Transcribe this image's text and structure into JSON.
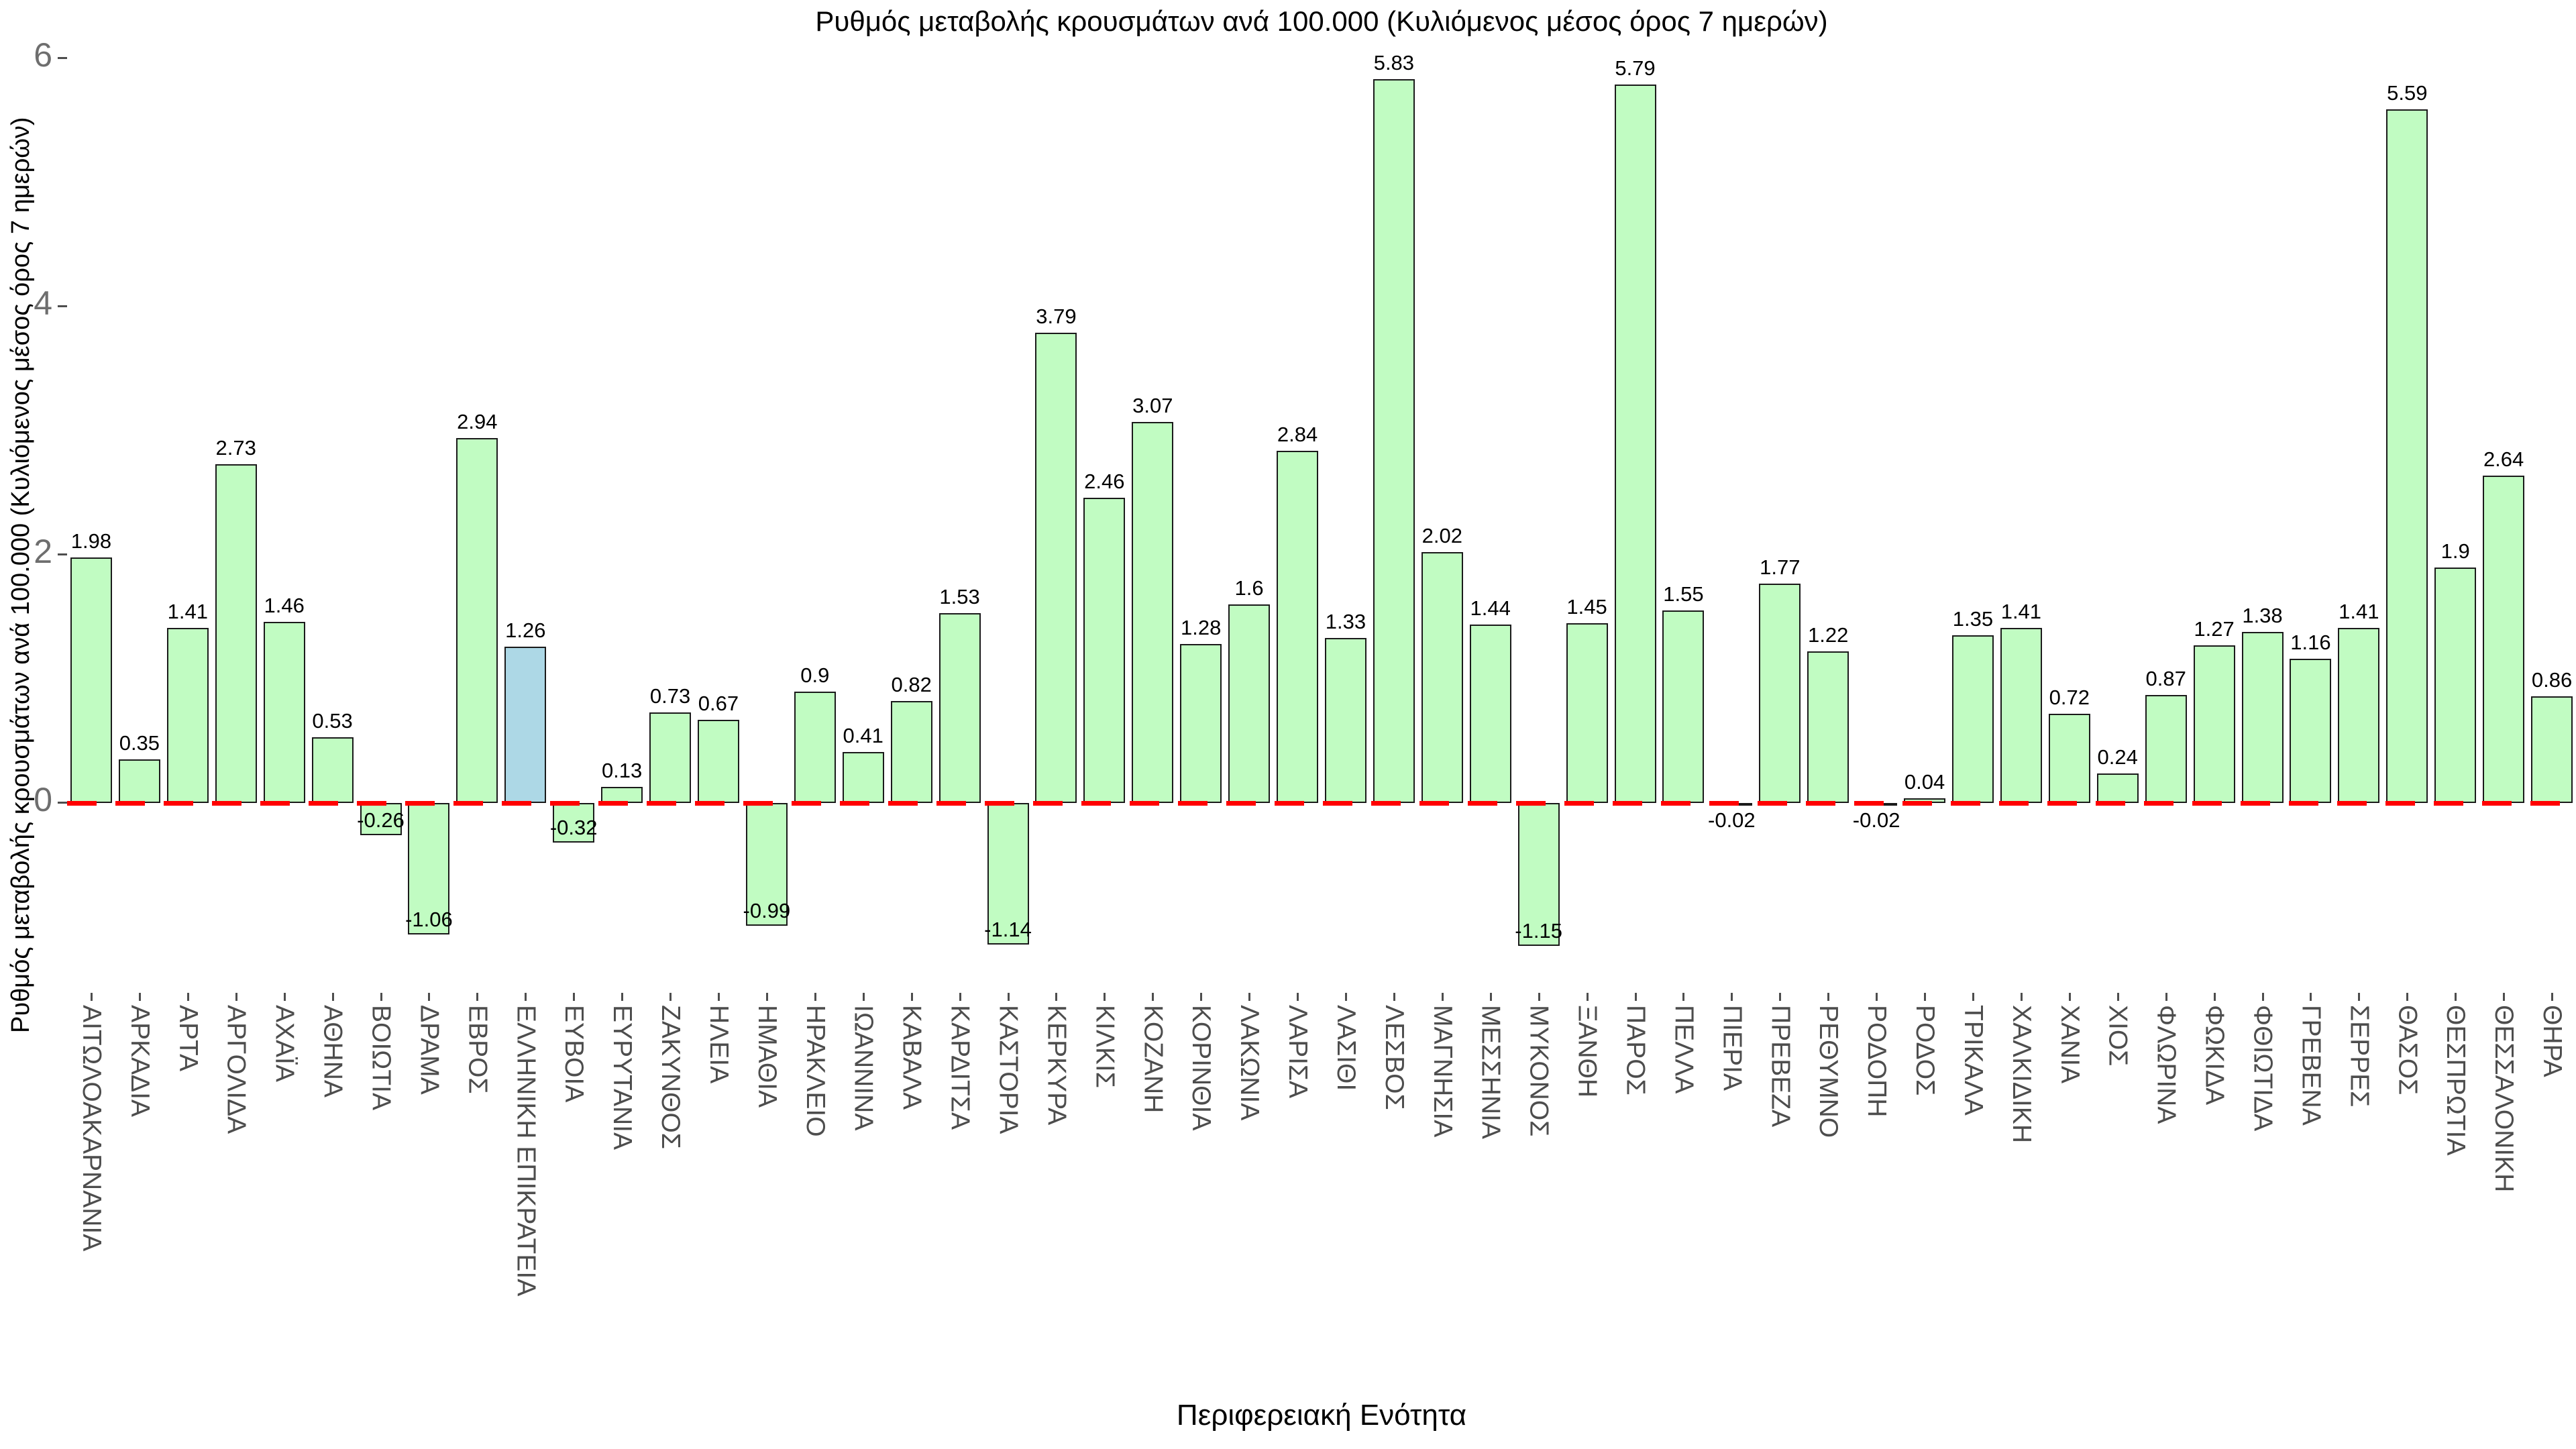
{
  "title": "Ρυθμός μεταβολής κρουσμάτων ανά 100.000 (Κυλιόμενος μέσος όρος 7 ημερών)",
  "x_axis_title": "Περιφερειακή Ενότητα",
  "y_axis_title": "Ρυθμός μεταβολής κρουσμάτων ανά 100.000 (Κυλιόμενος μέσος όρος 7 ημερών)",
  "chart_data": {
    "type": "bar",
    "title": "Ρυθμός μεταβολής κρουσμάτων ανά 100.000 (Κυλιόμενος μέσος όρος 7 ημερών)",
    "xlabel": "Περιφερειακή Ενότητα",
    "ylabel": "Ρυθμός μεταβολής κρουσμάτων ανά 100.000 (Κυλιόμενος μέσος όρος 7 ημερών)",
    "categories": [
      "ΑΙΤΩΛΟΑΚΑΡΝΑΝΙΑ",
      "ΑΡΚΑΔΙΑ",
      "ΑΡΤΑ",
      "ΑΡΓΟΛΙΔΑ",
      "ΑΧΑΪΑ",
      "ΑΘΗΝΑ",
      "ΒΟΙΩΤΙΑ",
      "ΔΡΑΜΑ",
      "ΕΒΡΟΣ",
      "ΕΛΛΗΝΙΚΗ ΕΠΙΚΡΑΤΕΙΑ",
      "ΕΥΒΟΙΑ",
      "ΕΥΡΥΤΑΝΙΑ",
      "ΖΑΚΥΝΘΟΣ",
      "ΗΛΕΙΑ",
      "ΗΜΑΘΙΑ",
      "ΗΡΑΚΛΕΙΟ",
      "ΙΩΑΝΝΙΝΑ",
      "ΚΑΒΑΛΑ",
      "ΚΑΡΔΙΤΣΑ",
      "ΚΑΣΤΟΡΙΑ",
      "ΚΕΡΚΥΡΑ",
      "ΚΙΛΚΙΣ",
      "ΚΟΖΑΝΗ",
      "ΚΟΡΙΝΘΙΑ",
      "ΛΑΚΩΝΙΑ",
      "ΛΑΡΙΣΑ",
      "ΛΑΣΙΘΙ",
      "ΛΕΣΒΟΣ",
      "ΜΑΓΝΗΣΙΑ",
      "ΜΕΣΣΗΝΙΑ",
      "ΜΥΚΟΝΟΣ",
      "ΞΑΝΘΗ",
      "ΠΑΡΟΣ",
      "ΠΕΛΛΑ",
      "ΠΙΕΡΙΑ",
      "ΠΡΕΒΕΖΑ",
      "ΡΕΘΥΜΝΟ",
      "ΡΟΔΟΠΗ",
      "ΡΟΔΟΣ",
      "ΤΡΙΚΑΛΑ",
      "ΧΑΛΚΙΔΙΚΗ",
      "ΧΑΝΙΑ",
      "ΧΙΟΣ",
      "ΦΛΩΡΙΝΑ",
      "ΦΩΚΙΔΑ",
      "ΦΘΙΩΤΙΔΑ",
      "ΓΡΕΒΕΝΑ",
      "ΣΕΡΡΕΣ",
      "ΘΑΣΟΣ",
      "ΘΕΣΠΡΩΤΙΑ",
      "ΘΕΣΣΑΛΟΝΙΚΗ",
      "ΘΗΡΑ"
    ],
    "values": [
      1.98,
      0.35,
      1.41,
      2.73,
      1.46,
      0.53,
      -0.26,
      -1.06,
      2.94,
      1.26,
      -0.32,
      0.13,
      0.73,
      0.67,
      -0.99,
      0.9,
      0.41,
      0.82,
      1.53,
      -1.14,
      3.79,
      2.46,
      3.07,
      1.28,
      1.6,
      2.84,
      1.33,
      5.83,
      2.02,
      1.44,
      -1.15,
      1.45,
      5.79,
      1.55,
      -0.02,
      1.77,
      1.22,
      -0.02,
      0.04,
      1.35,
      1.41,
      0.72,
      0.24,
      0.87,
      1.27,
      1.38,
      1.16,
      1.41,
      5.59,
      1.9,
      2.64,
      0.86
    ],
    "highlighted_category": "ΕΛΛΗΝΙΚΗ ΕΠΙΚΡΑΤΕΙΑ",
    "highlight_index": 9,
    "y_ticks": [
      0,
      2,
      4,
      6
    ],
    "ylim": [
      -1.53,
      6.15
    ],
    "grid": false,
    "legend": false,
    "zero_line_style": "dashed",
    "colors": {
      "bar_fill": "#C1FCC2",
      "highlight_fill": "#ADD8E6",
      "bar_border": "#1A1A1A",
      "zero_line": "#FF0000",
      "y_tick_text": "#6E6E6E",
      "category_text": "#4D4D4D",
      "value_text": "#000000",
      "background": "#FFFFFF"
    }
  }
}
